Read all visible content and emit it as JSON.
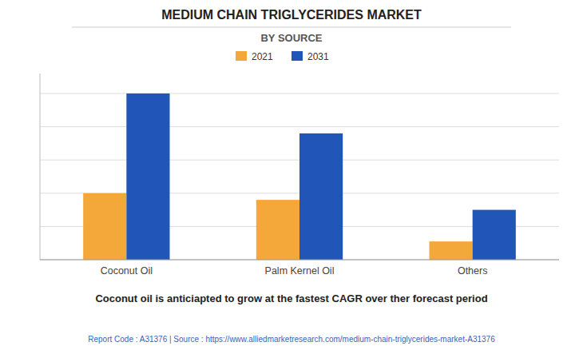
{
  "chart_data": {
    "type": "bar",
    "title": "MEDIUM CHAIN TRIGLYCERIDES MARKET",
    "subtitle": "BY SOURCE",
    "annotations": [
      "Coconut oil is anticiapted to grow at the fastest CAGR over ther forecast period",
      "Report Code : A31376  |  Source : https://www.alliedmarketresearch.com/medium-chain-triglycerides-market-A31376"
    ],
    "categories": [
      "Coconut Oil",
      "Palm Kernel Oil",
      "Others"
    ],
    "series": [
      {
        "name": "2021",
        "color": "#F5A83A",
        "values": [
          0.4,
          0.36,
          0.11
        ]
      },
      {
        "name": "2031",
        "color": "#2155B8",
        "values": [
          1.0,
          0.76,
          0.3
        ]
      }
    ],
    "ylim": [
      0,
      1.12
    ],
    "yticks": [
      0,
      0.2,
      0.4,
      0.6,
      0.8,
      1.0
    ],
    "grid": true,
    "legend": "top",
    "tick_labels": "x"
  }
}
